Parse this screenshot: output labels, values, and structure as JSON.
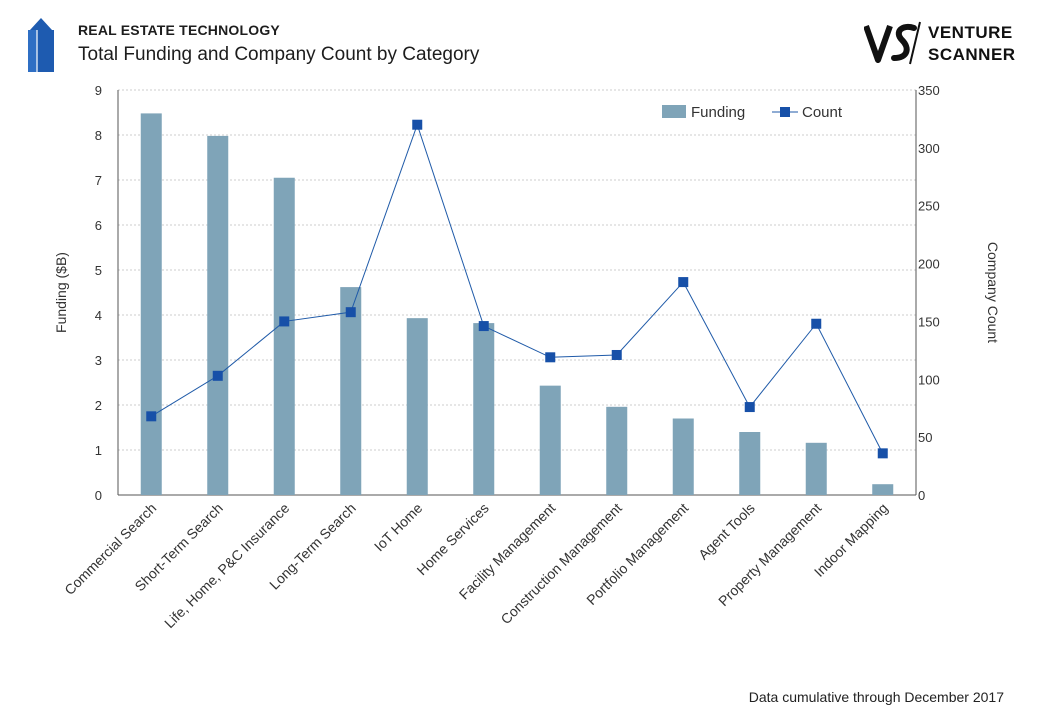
{
  "header": {
    "supertitle": "REAL ESTATE TECHNOLOGY",
    "title": "Total Funding and Company Count by Category",
    "brand_line1": "VENTURE",
    "brand_line2": "SCANNER",
    "brand_mark": "VS"
  },
  "footnote": "Data cumulative through December 2017",
  "colors": {
    "bar": "#7fa4b8",
    "line": "#1f5aa8",
    "marker": "#1750a8",
    "grid": "#bfbfbf",
    "brand_blue": "#1e5bb0"
  },
  "chart_data": {
    "type": "bar",
    "categories": [
      "Commercial Search",
      "Short-Term Search",
      "Life, Home, P&C Insurance",
      "Long-Term Search",
      "IoT Home",
      "Home Services",
      "Facility Management",
      "Construction Management",
      "Portfolio Management",
      "Agent Tools",
      "Property Management",
      "Indoor Mapping"
    ],
    "series": [
      {
        "name": "Funding",
        "type": "bar",
        "axis": "left",
        "values": [
          8.48,
          7.98,
          7.05,
          4.62,
          3.93,
          3.82,
          2.43,
          1.96,
          1.7,
          1.4,
          1.16,
          0.24
        ]
      },
      {
        "name": "Count",
        "type": "line",
        "axis": "right",
        "values": [
          68,
          103,
          150,
          158,
          320,
          146,
          119,
          121,
          184,
          76,
          148,
          36
        ]
      }
    ],
    "ylabel": "Funding ($B)",
    "y2label": "Company Count",
    "ylim": [
      0,
      9
    ],
    "y2lim": [
      0,
      350
    ],
    "yticks": [
      "0",
      "1",
      "2",
      "3",
      "4",
      "5",
      "6",
      "7",
      "8",
      "9"
    ],
    "y2ticks": [
      "0",
      "50",
      "100",
      "150",
      "200",
      "250",
      "300",
      "350"
    ],
    "grid": true,
    "legend": "top-right"
  }
}
